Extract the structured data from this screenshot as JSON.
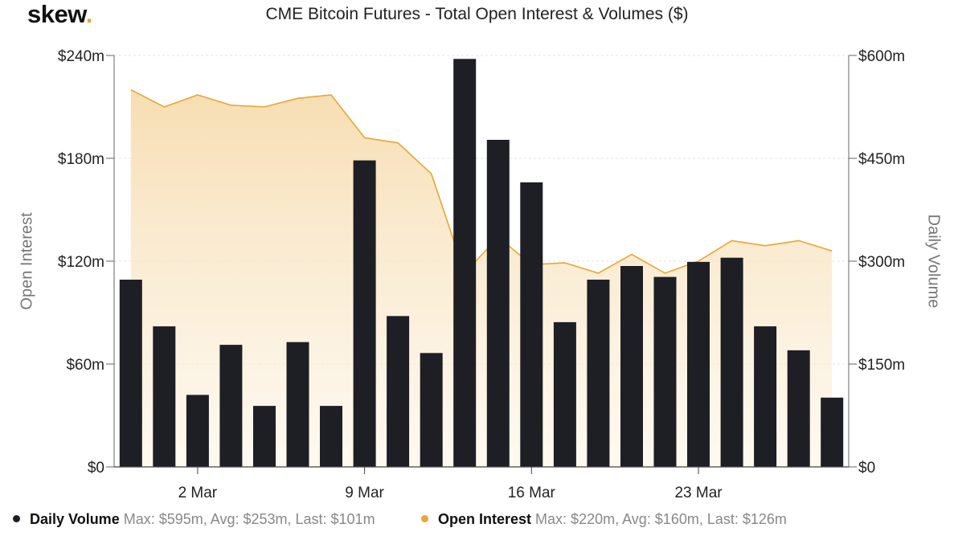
{
  "logo": {
    "text": "skew",
    "dot": "."
  },
  "colors": {
    "volume": "#1e1f24",
    "oi_line": "#e9a634",
    "oi_fill": "#f6dcae",
    "grid": "#e3e3e3",
    "axis_text": "#222222"
  },
  "chart_data": {
    "type": "bar+area",
    "title": "CME Bitcoin Futures - Total Open Interest & Volumes ($)",
    "y_left_label": "Open Interest",
    "y_right_label": "Daily Volume",
    "y_left_range": [
      0,
      240
    ],
    "y_right_range": [
      0,
      600
    ],
    "y_left_ticks": [
      "$0",
      "$60m",
      "$120m",
      "$180m",
      "$240m"
    ],
    "y_right_ticks": [
      "$0",
      "$150m",
      "$300m",
      "$450m",
      "$600m"
    ],
    "x_tick_labels": [
      {
        "label": "2 Mar",
        "index": 2
      },
      {
        "label": "9 Mar",
        "index": 7
      },
      {
        "label": "16 Mar",
        "index": 12
      },
      {
        "label": "23 Mar",
        "index": 17
      }
    ],
    "series": [
      {
        "name": "Daily Volume",
        "axis": "right",
        "style": "bar",
        "values": [
          273,
          205,
          105,
          178,
          89,
          182,
          89,
          447,
          220,
          166,
          595,
          477,
          415,
          211,
          273,
          293,
          277,
          299,
          305,
          205,
          170,
          101
        ]
      },
      {
        "name": "Open Interest",
        "axis": "left",
        "style": "area",
        "values": [
          220,
          210,
          217,
          211,
          210,
          215,
          217,
          192,
          189,
          171,
          113,
          134,
          118,
          119,
          113,
          124,
          113,
          120,
          132,
          129,
          132,
          126
        ]
      }
    ],
    "legend": [
      {
        "name": "Daily Volume",
        "stats": "Max: $595m, Avg: $253m, Last: $101m"
      },
      {
        "name": "Open Interest",
        "stats": "Max: $220m, Avg: $160m, Last: $126m"
      }
    ]
  }
}
